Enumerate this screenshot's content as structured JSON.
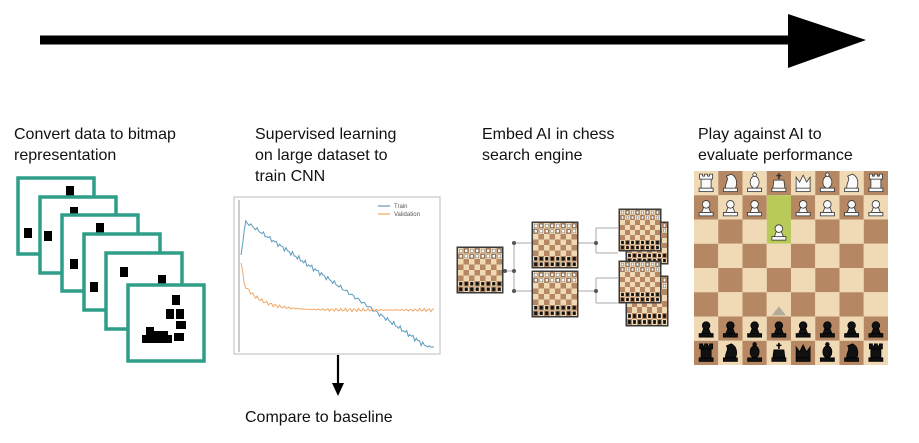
{
  "steps": [
    {
      "label": "Convert data to bitmap\nrepresentation"
    },
    {
      "label": "Supervised learning\non large dataset to\ntrain CNN"
    },
    {
      "label": "Embed AI in chess\nsearch engine"
    },
    {
      "label": "Play against AI to\nevaluate performance"
    }
  ],
  "baseline_label": "Compare to baseline",
  "chart_data": {
    "type": "line",
    "series": [
      {
        "name": "Train",
        "color": "#5a9bbd"
      },
      {
        "name": "Validation",
        "color": "#f0a868"
      }
    ]
  },
  "colors": {
    "arrow": "#000000",
    "bitmap_frame": "#2e9e88",
    "board_light": "#f0d9b5",
    "board_dark": "#b58863",
    "highlight": "#b9c95a"
  }
}
